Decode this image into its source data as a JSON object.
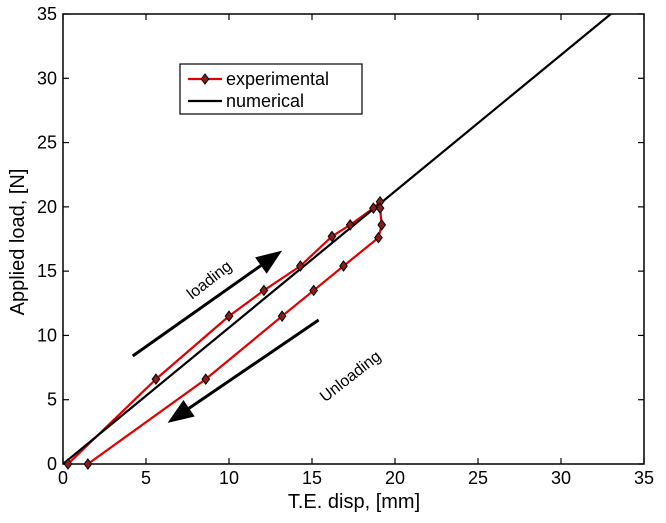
{
  "chart_data": {
    "type": "line",
    "xlabel": "T.E. disp, [mm]",
    "ylabel": "Applied load, [N]",
    "xlim": [
      0,
      35
    ],
    "ylim": [
      0,
      35
    ],
    "xticks": [
      0,
      5,
      10,
      15,
      20,
      25,
      30,
      35
    ],
    "yticks": [
      0,
      5,
      10,
      15,
      20,
      25,
      30,
      35
    ],
    "grid": false,
    "legend_position": "upper-left inside axes",
    "series": [
      {
        "name": "experimental",
        "color": "#e00000",
        "marker": "diamond",
        "points": [
          [
            0.3,
            0.0
          ],
          [
            5.6,
            6.6
          ],
          [
            10.0,
            11.5
          ],
          [
            12.1,
            13.5
          ],
          [
            14.3,
            15.4
          ],
          [
            16.2,
            17.7
          ],
          [
            17.3,
            18.6
          ],
          [
            18.7,
            19.9
          ],
          [
            19.1,
            20.4
          ],
          [
            19.1,
            19.9
          ],
          [
            19.2,
            18.6
          ],
          [
            19.0,
            17.6
          ],
          [
            16.9,
            15.4
          ],
          [
            15.1,
            13.5
          ],
          [
            13.2,
            11.5
          ],
          [
            8.6,
            6.6
          ],
          [
            1.5,
            0.0
          ]
        ]
      },
      {
        "name": "numerical",
        "color": "#000000",
        "marker": "none",
        "points": [
          [
            0.0,
            0.0
          ],
          [
            33.0,
            35.0
          ]
        ]
      }
    ],
    "annotations": [
      {
        "text": "loading",
        "at": [
          9.0,
          14.0
        ]
      },
      {
        "text": "Unloading",
        "at": [
          17.5,
          6.5
        ]
      }
    ],
    "arrows": [
      {
        "name": "loading-arrow",
        "from": [
          4.2,
          8.4
        ],
        "to": [
          13.2,
          16.6
        ]
      },
      {
        "name": "unloading-arrow",
        "from": [
          15.4,
          11.2
        ],
        "to": [
          6.3,
          3.2
        ]
      }
    ]
  }
}
